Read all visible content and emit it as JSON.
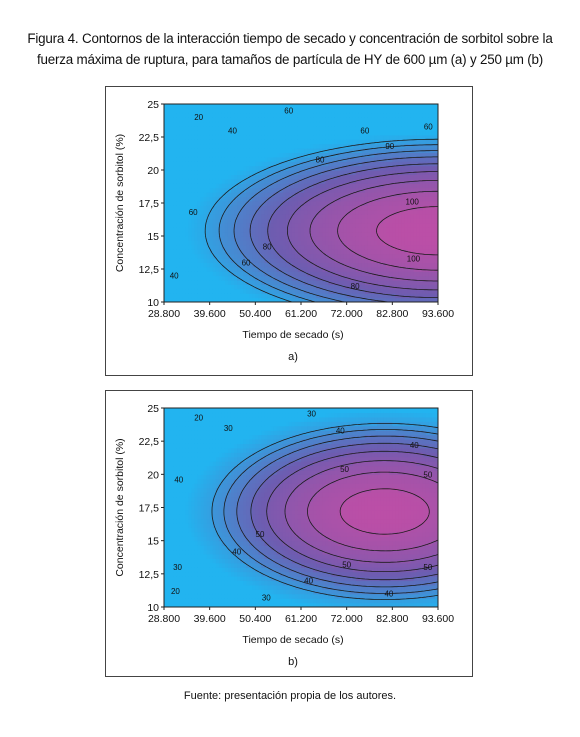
{
  "figure": {
    "title": "Figura 4. Contornos de la interacción tiempo de secado y concentración de sorbitol sobre la fuerza máxima de ruptura, para tamaños de partícula de HY de 600 µm (a) y 250 µm (b)",
    "source": "Fuente: presentación propia de los autores."
  },
  "chart_data": [
    {
      "type": "contour",
      "panel_label": "a)",
      "xlabel": "Tiempo de secado (s)",
      "ylabel": "Concentración de sorbitol (%)",
      "xticks": [
        "28.800",
        "39.600",
        "50.400",
        "61.200",
        "72.000",
        "82.800",
        "93.600"
      ],
      "yticks": [
        "10",
        "12,5",
        "15",
        "17,5",
        "20",
        "22,5",
        "25"
      ],
      "xlim": [
        28800,
        93600
      ],
      "ylim": [
        10,
        25
      ],
      "surface": {
        "peak_x": 93600,
        "peak_y": 15.4,
        "peak_value": 106,
        "sx": 58000,
        "sy": 7.3
      },
      "levels": [
        20,
        30,
        40,
        50,
        60,
        70,
        80,
        90,
        100
      ],
      "contour_labels": [
        {
          "text": "20",
          "x": 37000,
          "y": 24.0
        },
        {
          "text": "40",
          "x": 45000,
          "y": 23.0
        },
        {
          "text": "40",
          "x": 31200,
          "y": 12.0
        },
        {
          "text": "60",
          "x": 58300,
          "y": 24.5
        },
        {
          "text": "60",
          "x": 35700,
          "y": 16.8
        },
        {
          "text": "60",
          "x": 48200,
          "y": 13.0
        },
        {
          "text": "60",
          "x": 76300,
          "y": 23.0
        },
        {
          "text": "60",
          "x": 91300,
          "y": 23.3
        },
        {
          "text": "80",
          "x": 65700,
          "y": 20.8
        },
        {
          "text": "80",
          "x": 53200,
          "y": 14.2
        },
        {
          "text": "80",
          "x": 74000,
          "y": 11.2
        },
        {
          "text": "90",
          "x": 82200,
          "y": 21.8
        },
        {
          "text": "100",
          "x": 87500,
          "y": 17.6
        },
        {
          "text": "100",
          "x": 87800,
          "y": 13.3
        }
      ]
    },
    {
      "type": "contour",
      "panel_label": "b)",
      "xlabel": "Tiempo de secado (s)",
      "ylabel": "Concentración de sorbitol (%)",
      "xticks": [
        "28.800",
        "39.600",
        "50.400",
        "61.200",
        "72.000",
        "82.800",
        "93.600"
      ],
      "yticks": [
        "10",
        "12,5",
        "15",
        "17,5",
        "20",
        "22,5",
        "25"
      ],
      "xlim": [
        28800,
        93600
      ],
      "ylim": [
        10,
        25
      ],
      "surface": {
        "peak_x": 81000,
        "peak_y": 17.2,
        "peak_value": 57.5,
        "sx": 48000,
        "sy": 7.8
      },
      "levels": [
        20,
        25,
        30,
        35,
        40,
        45,
        50,
        55
      ],
      "contour_labels": [
        {
          "text": "20",
          "x": 37000,
          "y": 24.3
        },
        {
          "text": "30",
          "x": 44000,
          "y": 23.5
        },
        {
          "text": "30",
          "x": 63700,
          "y": 24.6
        },
        {
          "text": "40",
          "x": 70500,
          "y": 23.3
        },
        {
          "text": "40",
          "x": 88000,
          "y": 22.2
        },
        {
          "text": "40",
          "x": 32300,
          "y": 19.6
        },
        {
          "text": "50",
          "x": 71500,
          "y": 20.4
        },
        {
          "text": "50",
          "x": 91200,
          "y": 20.0
        },
        {
          "text": "50",
          "x": 51500,
          "y": 15.5
        },
        {
          "text": "40",
          "x": 46000,
          "y": 14.2
        },
        {
          "text": "40",
          "x": 63000,
          "y": 12.0
        },
        {
          "text": "50",
          "x": 72000,
          "y": 13.2
        },
        {
          "text": "50",
          "x": 91200,
          "y": 13.0
        },
        {
          "text": "30",
          "x": 32000,
          "y": 13.0
        },
        {
          "text": "40",
          "x": 82000,
          "y": 11.0
        },
        {
          "text": "30",
          "x": 53000,
          "y": 10.7
        },
        {
          "text": "20",
          "x": 31500,
          "y": 11.2
        }
      ]
    }
  ],
  "colors": {
    "low": "#22b4f0",
    "mid": "#6e5cb0",
    "high": "#c04ea6",
    "line": "#1b1b1b"
  }
}
